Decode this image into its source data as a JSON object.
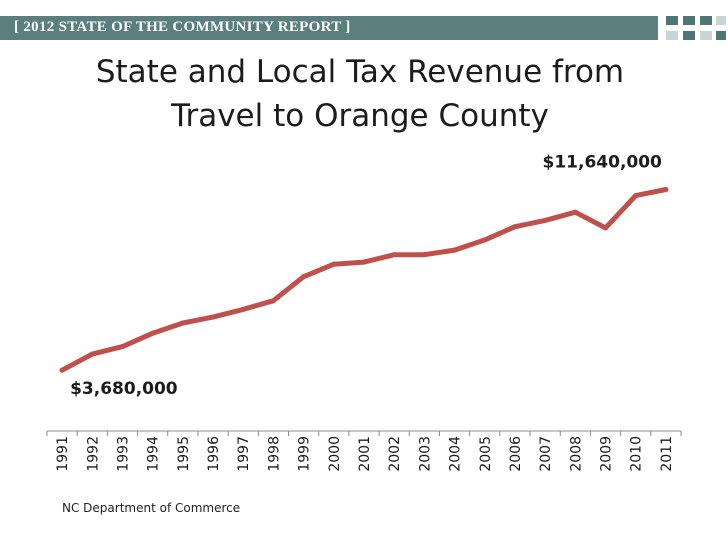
{
  "header": {
    "banner_text": "[ 2012 STATE OF THE COMMUNITY REPORT ]"
  },
  "source_text": "NC Department of Commerce",
  "colors": {
    "banner": "#5a7f7e",
    "logo_dark": "#4f7574",
    "logo_light": "#c9d5d4",
    "line": "#c0504d",
    "axis": "#8c8c8c"
  },
  "chart_data": {
    "type": "line",
    "title_lines": [
      "State and Local Tax Revenue from",
      "Travel to Orange County"
    ],
    "xlabel": "",
    "ylabel": "",
    "categories": [
      "1991",
      "1992",
      "1993",
      "1994",
      "1995",
      "1996",
      "1997",
      "1998",
      "1999",
      "2000",
      "2001",
      "2002",
      "2003",
      "2004",
      "2005",
      "2006",
      "2007",
      "2008",
      "2009",
      "2010",
      "2011"
    ],
    "series": [
      {
        "values": [
          3680000,
          4390000,
          4720000,
          5310000,
          5760000,
          6020000,
          6360000,
          6740000,
          7800000,
          8350000,
          8440000,
          8770000,
          8770000,
          8970000,
          9420000,
          10000000,
          10280000,
          10640000,
          9950000,
          11370000,
          11640000
        ]
      }
    ],
    "ylim": [
      1000000,
      12500000
    ],
    "grid": false,
    "legend": "none",
    "annotations": [
      {
        "text": "$3,680,000",
        "category": "1991"
      },
      {
        "text": "$11,640,000",
        "category": "2011"
      }
    ]
  }
}
